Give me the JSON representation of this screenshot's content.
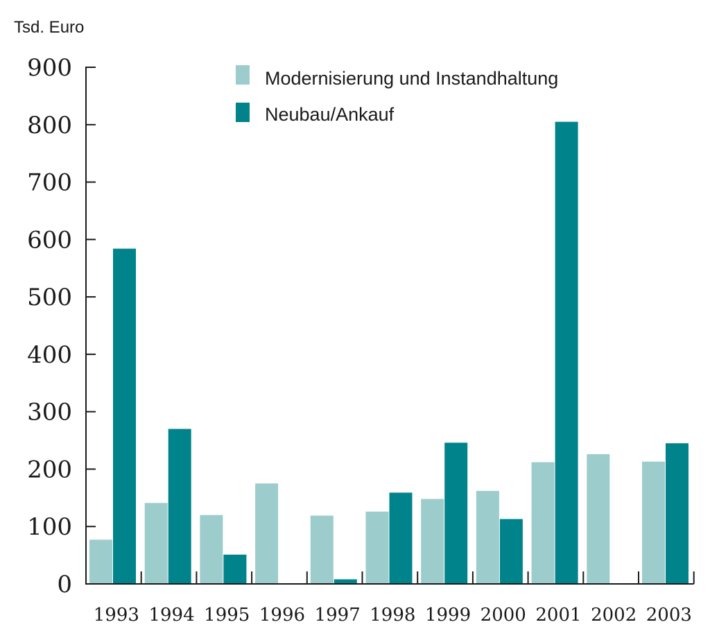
{
  "chart_data": {
    "type": "bar",
    "ylabel": "Tsd. Euro",
    "ylim": [
      0,
      900
    ],
    "yticks": [
      0,
      100,
      200,
      300,
      400,
      500,
      600,
      700,
      800,
      900
    ],
    "categories": [
      "1993",
      "1994",
      "1995",
      "1996",
      "1997",
      "1998",
      "1999",
      "2000",
      "2001",
      "2002",
      "2003"
    ],
    "legend_position": "top-center",
    "grid": false,
    "series": [
      {
        "name": "Modernisierung und Instandhaltung",
        "color": "#9dcccc",
        "values": [
          77,
          141,
          120,
          175,
          119,
          126,
          148,
          162,
          212,
          226,
          213
        ]
      },
      {
        "name": "Neubau/Ankauf",
        "color": "#00838a",
        "values": [
          584,
          270,
          51,
          0,
          8,
          159,
          246,
          113,
          805,
          0,
          245
        ]
      }
    ]
  }
}
